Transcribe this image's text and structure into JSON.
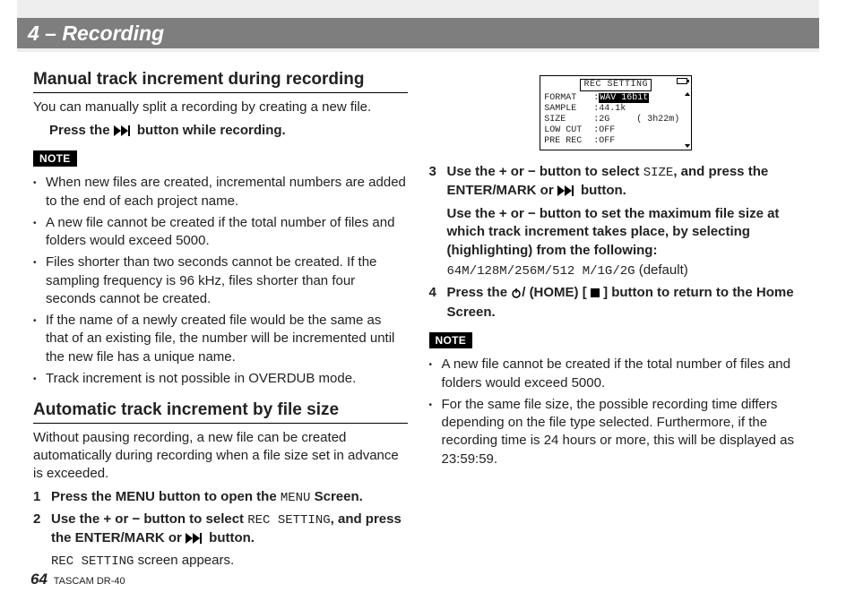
{
  "header": {
    "title": "4 – Recording"
  },
  "left": {
    "sec1": {
      "heading": "Manual track increment during recording",
      "intro": "You can manually split a recording by creating a new file.",
      "press_prefix": "Press the ",
      "press_suffix": " button while recording.",
      "note_label": "NOTE",
      "notes": [
        "When new files are created, incremental numbers are added to the end of each project name.",
        "A new file cannot be created if the total number of files and folders would exceed 5000.",
        "Files shorter than two seconds cannot be created. If the sampling frequency is 96 kHz, files shorter than four seconds cannot be created.",
        "If the name of a newly created file would be the same as that of an existing file, the number will be incremented until the new file has a unique name.",
        "Track increment is not possible in OVERDUB mode."
      ]
    },
    "sec2": {
      "heading": "Automatic track increment by file size",
      "intro": "Without pausing recording, a new file can be created automatically during recording when a file size set in advance is exceeded.",
      "step1_a": "Press the MENU button to open the ",
      "step1_menu": "MENU",
      "step1_b": " Screen.",
      "step2_a": "Use the + or − button to select ",
      "step2_rec": "REC SETTING",
      "step2_b": ", and press the ENTER/MARK or ",
      "step2_c": " button.",
      "step2_sub_a": "REC SETTING",
      "step2_sub_b": " screen appears."
    }
  },
  "right": {
    "lcd": {
      "title": "REC SETTING",
      "rows": [
        {
          "k": "FORMAT",
          "v": "WAV 16bit",
          "hl": true
        },
        {
          "k": "SAMPLE",
          "v": "44.1k"
        },
        {
          "k": "SIZE",
          "v": "2G     ( 3h22m)"
        },
        {
          "k": "LOW CUT",
          "v": "OFF"
        },
        {
          "k": "PRE REC",
          "v": "OFF"
        }
      ]
    },
    "step3_a": "Use the + or − button to select ",
    "step3_size": "SIZE",
    "step3_b": ", and press the ENTER/MARK or ",
    "step3_c": " button.",
    "step3_d": "Use the + or − button to set the maximum file size at which track increment takes place, by selecting (highlighting) from the following:",
    "step3_opts": "64M/128M/256M/512 M/1G/2G",
    "step3_def": " (default)",
    "step4_a": "Press the ",
    "step4_b": " (HOME) [",
    "step4_c": "] button to return to the Home Screen.",
    "note_label": "NOTE",
    "notes": [
      "A new file cannot be created if the total number of files and folders would exceed 5000.",
      "For the same file size, the possible recording time differs depending on the file type selected. Furthermore, if the recording time is 24 hours or more, this will be displayed as 23:59:59."
    ]
  },
  "footer": {
    "page": "64",
    "model": "TASCAM DR-40"
  }
}
